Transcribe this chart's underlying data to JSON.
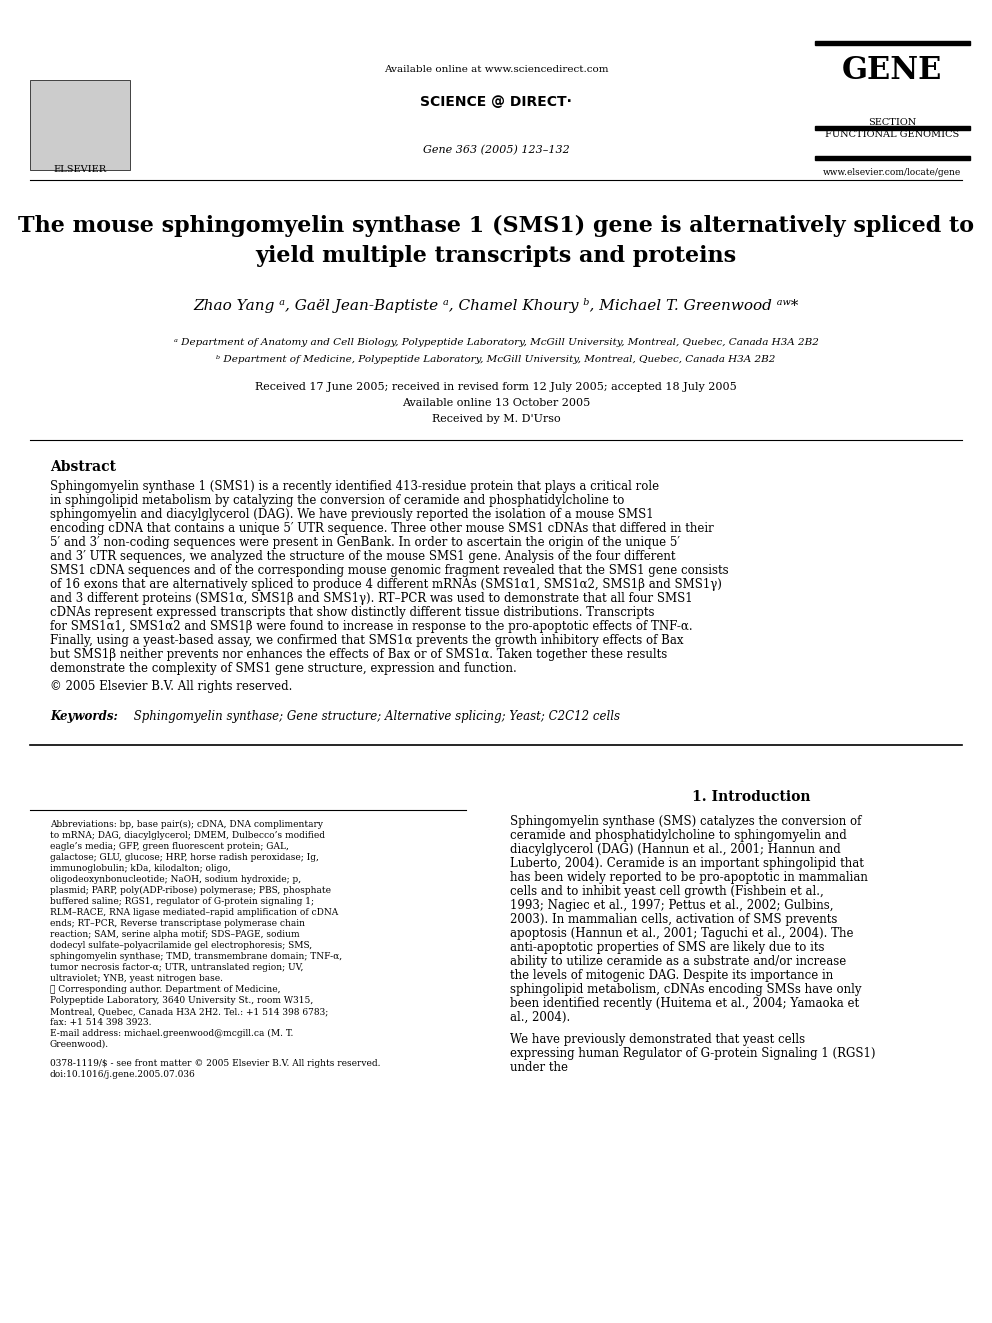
{
  "bg_color": "#ffffff",
  "header": {
    "available_online": "Available online at www.sciencedirect.com",
    "journal_info": "Gene 363 (2005) 123–132"
  },
  "title": "The mouse sphingomyelin synthase 1 (SMS1) gene is alternatively spliced to\nyield multiple transcripts and proteins",
  "authors": "Zhao Yang ᵃ, Gaël Jean-Baptiste ᵃ, Chamel Khoury ᵇ, Michael T. Greenwood ᵃʷ*",
  "affiliations": [
    "ᵃ Department of Anatomy and Cell Biology, Polypeptide Laboratory, McGill University, Montreal, Quebec, Canada H3A 2B2",
    "ᵇ Department of Medicine, Polypeptide Laboratory, McGill University, Montreal, Quebec, Canada H3A 2B2"
  ],
  "dates": [
    "Received 17 June 2005; received in revised form 12 July 2005; accepted 18 July 2005",
    "Available online 13 October 2005",
    "Received by M. D'Urso"
  ],
  "abstract_title": "Abstract",
  "abstract_text": "Sphingomyelin synthase 1 (SMS1) is a recently identified 413-residue protein that plays a critical role in sphingolipid metabolism by catalyzing the conversion of ceramide and phosphatidylcholine to sphingomyelin and diacylglycerol (DAG). We have previously reported the isolation of a mouse SMS1 encoding cDNA that contains a unique 5′ UTR sequence. Three other mouse SMS1 cDNAs that differed in their 5′ and 3′ non-coding sequences were present in GenBank. In order to ascertain the origin of the unique 5′ and 3′ UTR sequences, we analyzed the structure of the mouse SMS1 gene. Analysis of the four different SMS1 cDNA sequences and of the corresponding mouse genomic fragment revealed that the SMS1 gene consists of 16 exons that are alternatively spliced to produce 4 different mRNAs (SMS1α1, SMS1α2, SMS1β and SMS1γ) and 3 different proteins (SMS1α, SMS1β and SMS1γ). RT–PCR was used to demonstrate that all four SMS1 cDNAs represent expressed transcripts that show distinctly different tissue distributions. Transcripts for SMS1α1, SMS1α2 and SMS1β were found to increase in response to the pro-apoptotic effects of TNF-α. Finally, using a yeast-based assay, we confirmed that SMS1α prevents the growth inhibitory effects of Bax but SMS1β neither prevents nor enhances the effects of Bax or of SMS1α. Taken together these results demonstrate the complexity of SMS1 gene structure, expression and function.\n© 2005 Elsevier B.V. All rights reserved.",
  "keywords_label": "Keywords:",
  "keywords_text": " Sphingomyelin synthase; Gene structure; Alternative splicing; Yeast; C2C12 cells",
  "section_title": "1. Introduction",
  "intro_text": "Sphingomyelin synthase (SMS) catalyzes the conversion of ceramide and phosphatidylcholine to sphingomyelin and diacylglycerol (DAG) (Hannun et al., 2001; Hannun and Luberto, 2004). Ceramide is an important sphingolipid that has been widely reported to be pro-apoptotic in mammalian cells and to inhibit yeast cell growth (Fishbein et al., 1993; Nagiec et al., 1997; Pettus et al., 2002; Gulbins, 2003). In mammalian cells, activation of SMS prevents apoptosis (Hannun et al., 2001; Taguchi et al., 2004). The anti-apoptotic properties of SMS are likely due to its ability to utilize ceramide as a substrate and/or increase the levels of mitogenic DAG. Despite its importance in sphingolipid metabolism, cDNAs encoding SMSs have only been identified recently (Huitema et al., 2004; Yamaoka et al., 2004).\n\nWe have previously demonstrated that yeast cells expressing human Regulator of G-protein Signaling 1 (RGS1) under the",
  "footnotes_text": "Abbreviations: bp, base pair(s); cDNA, DNA complimentary to mRNA; DAG, diacylglycerol; DMEM, Dulbecco’s modified eagle’s media; GFP, green fluorescent protein; GAL, galactose; GLU, glucose; HRP, horse radish peroxidase; Ig, immunoglobulin; kDa, kilodalton; oligo, oligodeoxynbonucleotide; NaOH, sodium hydroxide; p, plasmid; PARP, poly(ADP-ribose) polymerase; PBS, phosphate buffered saline; RGS1, regulator of G-protein signaling 1; RLM–RACE, RNA ligase mediated–rapid amplification of cDNA ends; RT–PCR, Reverse transcriptase polymerase chain reaction; SAM, serine alpha motif; SDS–PAGE, sodium dodecyl sulfate–polyacrilamide gel electrophoresis; SMS, sphingomyelin synthase; TMD, transmembrane domain; TNF-α, tumor necrosis factor-α; UTR, untranslated region; UV, ultraviolet; YNB, yeast nitrogen base.\n☆ Corresponding author. Department of Medicine, Polypeptide Laboratory, 3640 University St., room W315, Montreal, Quebec, Canada H3A 2H2. Tel.: +1 514 398 6783; fax: +1 514 398 3923.\nE-mail address: michael.greenwood@mcgill.ca (M. T. Greenwood).",
  "bottom_text": "0378-1119/$ - see front matter © 2005 Elsevier B.V. All rights reserved.\ndoi:10.1016/j.gene.2005.07.036"
}
